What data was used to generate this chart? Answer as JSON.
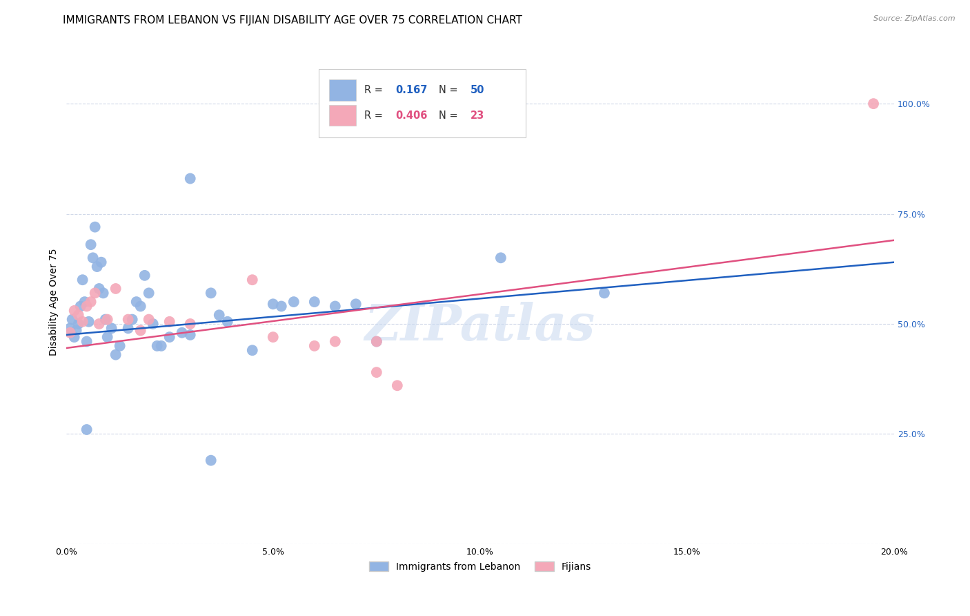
{
  "title": "IMMIGRANTS FROM LEBANON VS FIJIAN DISABILITY AGE OVER 75 CORRELATION CHART",
  "source": "Source: ZipAtlas.com",
  "ylabel": "Disability Age Over 75",
  "x_tick_labels": [
    "0.0%",
    "5.0%",
    "10.0%",
    "15.0%",
    "20.0%"
  ],
  "x_tick_vals": [
    0.0,
    5.0,
    10.0,
    15.0,
    20.0
  ],
  "xlim": [
    0.0,
    20.0
  ],
  "ylim": [
    0.0,
    110.0
  ],
  "legend_labels": [
    "Immigrants from Lebanon",
    "Fijians"
  ],
  "R_lebanon": 0.167,
  "N_lebanon": 50,
  "R_fijians": 0.406,
  "N_fijians": 23,
  "blue_color": "#92B4E3",
  "pink_color": "#F4A8B8",
  "blue_line_color": "#2060C0",
  "pink_line_color": "#E05080",
  "scatter_blue": [
    [
      0.1,
      49.0
    ],
    [
      0.15,
      51.0
    ],
    [
      0.2,
      47.0
    ],
    [
      0.25,
      48.5
    ],
    [
      0.3,
      50.0
    ],
    [
      0.35,
      54.0
    ],
    [
      0.4,
      60.0
    ],
    [
      0.45,
      55.0
    ],
    [
      0.5,
      46.0
    ],
    [
      0.55,
      50.5
    ],
    [
      0.6,
      68.0
    ],
    [
      0.65,
      65.0
    ],
    [
      0.7,
      72.0
    ],
    [
      0.75,
      63.0
    ],
    [
      0.8,
      58.0
    ],
    [
      0.85,
      64.0
    ],
    [
      0.9,
      57.0
    ],
    [
      0.95,
      51.0
    ],
    [
      1.0,
      47.0
    ],
    [
      1.1,
      49.0
    ],
    [
      1.2,
      43.0
    ],
    [
      1.3,
      45.0
    ],
    [
      1.5,
      49.0
    ],
    [
      1.6,
      51.0
    ],
    [
      1.7,
      55.0
    ],
    [
      1.8,
      54.0
    ],
    [
      1.9,
      61.0
    ],
    [
      2.0,
      57.0
    ],
    [
      2.1,
      50.0
    ],
    [
      2.2,
      45.0
    ],
    [
      2.3,
      45.0
    ],
    [
      2.5,
      47.0
    ],
    [
      2.8,
      48.0
    ],
    [
      3.0,
      47.5
    ],
    [
      3.5,
      57.0
    ],
    [
      3.7,
      52.0
    ],
    [
      3.9,
      50.5
    ],
    [
      4.5,
      44.0
    ],
    [
      5.0,
      54.5
    ],
    [
      5.2,
      54.0
    ],
    [
      5.5,
      55.0
    ],
    [
      6.0,
      55.0
    ],
    [
      6.5,
      54.0
    ],
    [
      7.0,
      54.5
    ],
    [
      7.5,
      46.0
    ],
    [
      3.0,
      83.0
    ],
    [
      10.5,
      65.0
    ],
    [
      13.0,
      57.0
    ],
    [
      0.5,
      26.0
    ],
    [
      3.5,
      19.0
    ]
  ],
  "scatter_pink": [
    [
      0.1,
      48.0
    ],
    [
      0.2,
      53.0
    ],
    [
      0.3,
      52.0
    ],
    [
      0.4,
      50.5
    ],
    [
      0.5,
      54.0
    ],
    [
      0.6,
      55.0
    ],
    [
      0.7,
      57.0
    ],
    [
      0.8,
      50.0
    ],
    [
      1.0,
      51.0
    ],
    [
      1.2,
      58.0
    ],
    [
      1.5,
      51.0
    ],
    [
      1.8,
      48.5
    ],
    [
      2.0,
      51.0
    ],
    [
      2.5,
      50.5
    ],
    [
      3.0,
      50.0
    ],
    [
      4.5,
      60.0
    ],
    [
      5.0,
      47.0
    ],
    [
      6.0,
      45.0
    ],
    [
      6.5,
      46.0
    ],
    [
      7.5,
      46.0
    ],
    [
      7.5,
      39.0
    ],
    [
      8.0,
      36.0
    ],
    [
      19.5,
      100.0
    ]
  ],
  "watermark": "ZIPatlas",
  "watermark_color": "#C8D8F0",
  "background_color": "#FFFFFF",
  "grid_color": "#D0D8E8",
  "title_fontsize": 11,
  "axis_label_fontsize": 10,
  "tick_fontsize": 9
}
